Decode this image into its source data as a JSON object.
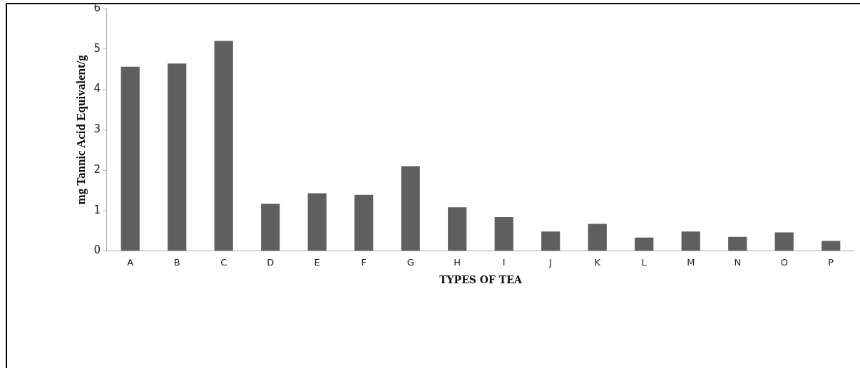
{
  "chart_data": {
    "type": "bar",
    "xlabel": "TYPES OF TEA",
    "ylabel": "mg Tannic Acid Equivalent/g",
    "categories": [
      "A",
      "B",
      "C",
      "D",
      "E",
      "F",
      "G",
      "H",
      "I",
      "J",
      "K",
      "L",
      "M",
      "N",
      "O",
      "P"
    ],
    "values": [
      4.56,
      4.64,
      5.2,
      1.17,
      1.43,
      1.39,
      2.1,
      1.08,
      0.84,
      0.48,
      0.67,
      0.33,
      0.48,
      0.35,
      0.46,
      0.25
    ],
    "color": "#5f5f5f",
    "ylim": [
      0,
      6
    ],
    "yticks": [
      0,
      1,
      2,
      3,
      4,
      5,
      6
    ],
    "grid": false,
    "legend": false
  }
}
